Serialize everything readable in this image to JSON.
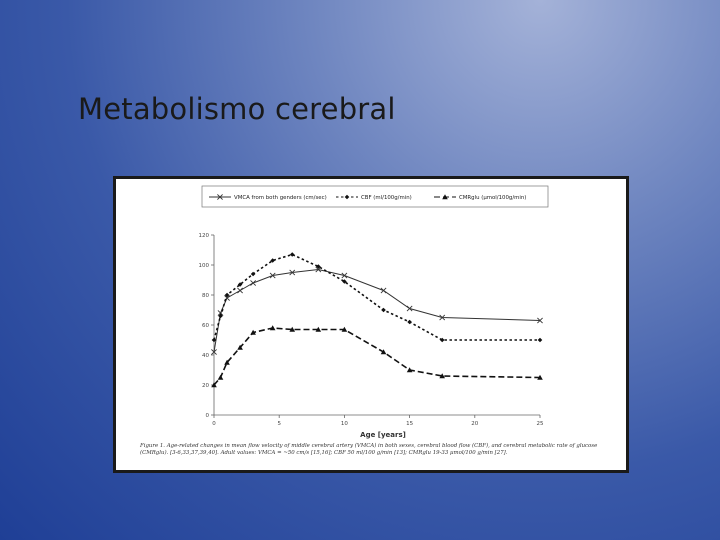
{
  "slide": {
    "title": "Metabolismo cerebral"
  },
  "chart_data": {
    "type": "line",
    "xlabel": "Age [years]",
    "ylabel": "",
    "xlim": [
      0,
      25
    ],
    "ylim": [
      0,
      120
    ],
    "x_ticks": [
      0,
      5,
      10,
      15,
      20,
      25
    ],
    "y_ticks": [
      0,
      20,
      40,
      60,
      80,
      100,
      120
    ],
    "grid": false,
    "legend_position": "top",
    "series": [
      {
        "name": "VMCA from both genders (cm/sec)",
        "marker": "x",
        "dash": "solid",
        "color": "#333333",
        "x": [
          0,
          0.5,
          1,
          2,
          3,
          4.5,
          6,
          8,
          10,
          13,
          15,
          17.5,
          25
        ],
        "y": [
          42,
          68,
          78,
          83,
          88,
          93,
          95,
          97,
          93,
          83,
          71,
          65,
          63
        ]
      },
      {
        "name": "CBF (ml/100g/min)",
        "marker": "diamond",
        "dash": "dotted",
        "color": "#111111",
        "x": [
          0,
          0.5,
          1,
          2,
          3,
          4.5,
          6,
          8,
          10,
          13,
          15,
          17.5,
          25
        ],
        "y": [
          50,
          66,
          80,
          87,
          94,
          103,
          107,
          99,
          89,
          70,
          62,
          50,
          50
        ]
      },
      {
        "name": "CMRglu (µmol/100g/min)",
        "marker": "triangle",
        "dash": "dashed",
        "color": "#111111",
        "x": [
          0,
          0.5,
          1,
          2,
          3,
          4.5,
          6,
          8,
          10,
          13,
          15,
          17.5,
          25
        ],
        "y": [
          20,
          25,
          35,
          45,
          55,
          58,
          57,
          57,
          57,
          42,
          30,
          26,
          25
        ]
      }
    ]
  },
  "figure": {
    "caption": "Figure 1. Age-related changes in mean flow velocity of middle cerebral artery (VMCA) in both sexes, cerebral blood flow (CBF), and cerebral metabolic rate of glucose (CMRglu). [3-6,33,37,39,40]. Adult values: VMCA = ~50 cm/s [15,16]; CBF 50 ml/100 g/min [13]; CMRglu 19-33 µmol/100 g/min [27]."
  }
}
